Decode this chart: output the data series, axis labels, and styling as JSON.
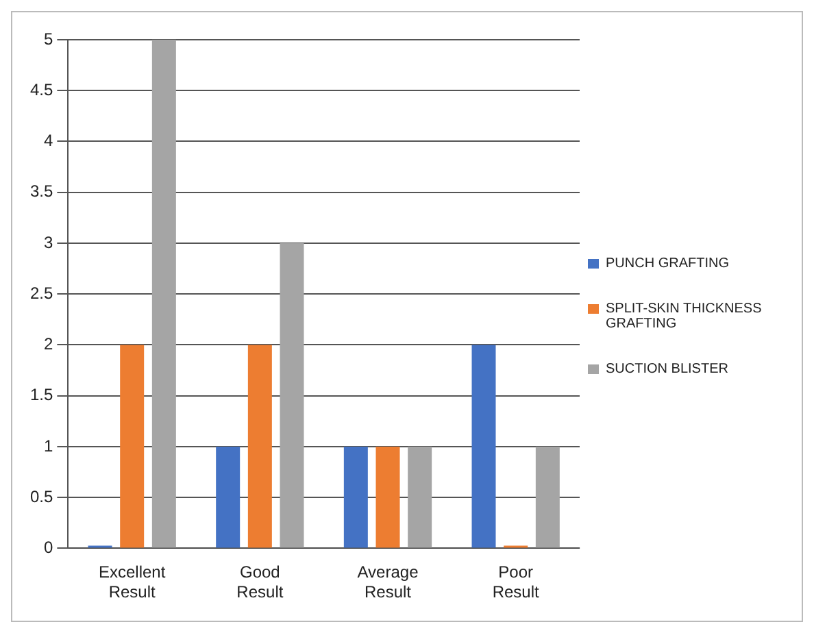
{
  "chart_data": {
    "type": "bar",
    "categories": [
      "Excellent Result",
      "Good Result",
      "Average Result",
      "Poor Result"
    ],
    "series": [
      {
        "name": "PUNCH GRAFTING",
        "color": "#4472c4",
        "values": [
          0,
          1,
          1,
          2
        ]
      },
      {
        "name": "SPLIT-SKIN THICKNESS GRAFTING",
        "color": "#ed7d31",
        "values": [
          2,
          2,
          1,
          0
        ]
      },
      {
        "name": "SUCTION BLISTER",
        "color": "#a5a5a5",
        "values": [
          5,
          3,
          1,
          1
        ]
      }
    ],
    "ylim": [
      0,
      5
    ],
    "yticks": [
      0,
      0.5,
      1,
      1.5,
      2,
      2.5,
      3,
      3.5,
      4,
      4.5,
      5
    ],
    "grid": "y",
    "legend": "right"
  }
}
